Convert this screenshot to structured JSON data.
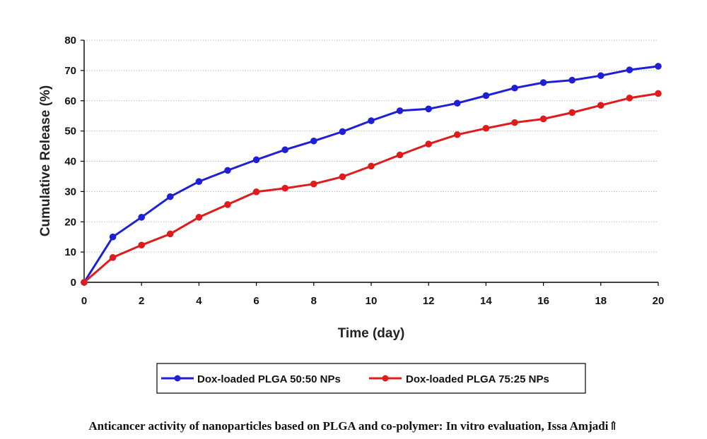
{
  "chart_data": {
    "type": "line",
    "title": "",
    "xlabel": "Time (day)",
    "ylabel": "Cumulative Release (%)",
    "xlim": [
      0,
      20
    ],
    "ylim": [
      0,
      80
    ],
    "xticks": [
      "0",
      "2",
      "4",
      "6",
      "8",
      "10",
      "12",
      "14",
      "16",
      "18",
      "20"
    ],
    "yticks": [
      "0",
      "10",
      "20",
      "30",
      "40",
      "50",
      "60",
      "70",
      "80"
    ],
    "grid": "horizontal",
    "legend_position": "bottom-center",
    "x": [
      0,
      1,
      2,
      3,
      4,
      5,
      6,
      7,
      8,
      9,
      10,
      11,
      12,
      13,
      14,
      15,
      16,
      17,
      18,
      19,
      20
    ],
    "series": [
      {
        "name": "Dox-loaded PLGA 50:50 NPs",
        "color": "#1f1fd6",
        "values": [
          0,
          15,
          21.5,
          28.3,
          33.3,
          37,
          40.5,
          43.8,
          46.7,
          49.8,
          53.4,
          56.7,
          57.3,
          59.2,
          61.7,
          64.2,
          66,
          66.8,
          68.3,
          70.2,
          71.4
        ]
      },
      {
        "name": "Dox-loaded PLGA 75:25 NPs",
        "color": "#e01b1b",
        "values": [
          0,
          8.2,
          12.3,
          16,
          21.5,
          25.7,
          29.9,
          31.1,
          32.5,
          34.9,
          38.4,
          42.1,
          45.7,
          48.8,
          50.9,
          52.8,
          54,
          56.1,
          58.5,
          60.9,
          62.4
        ]
      }
    ]
  },
  "caption": "Anticancer activity of nanoparticles based on PLGA and co-polymer: In vitro evaluation, Issa Amjadi⇑"
}
